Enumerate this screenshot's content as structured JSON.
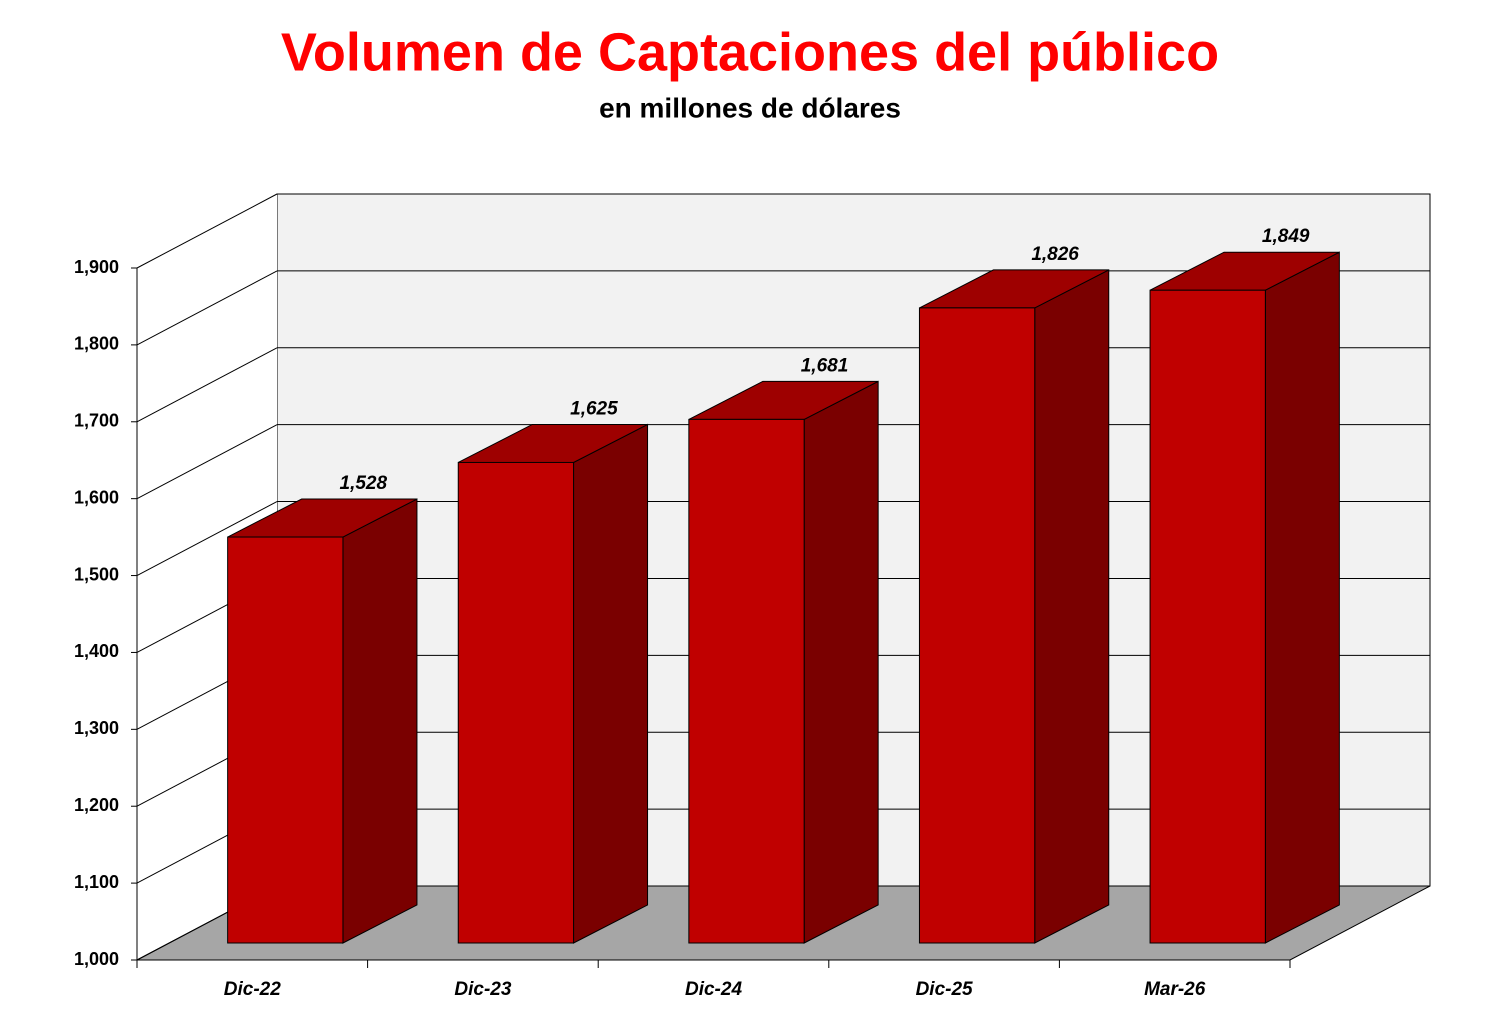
{
  "chart_data": {
    "type": "bar3d",
    "title": "Volumen de Captaciones del público",
    "subtitle": "en millones de dólares",
    "categories": [
      "Dic-22",
      "Dic-23",
      "Dic-24",
      "Dic-25",
      "Mar-26"
    ],
    "values": [
      1528,
      1625,
      1681,
      1826,
      1849
    ],
    "value_labels": [
      "1,528",
      "1,625",
      "1,681",
      "1,826",
      "1,849"
    ],
    "color": "#c00000",
    "ylim": [
      1000,
      1900
    ],
    "yticks": [
      {
        "value": 1000,
        "label": "1,000"
      },
      {
        "value": 1100,
        "label": "1,100"
      },
      {
        "value": 1200,
        "label": "1,200"
      },
      {
        "value": 1300,
        "label": "1,300"
      },
      {
        "value": 1400,
        "label": "1,400"
      },
      {
        "value": 1500,
        "label": "1,500"
      },
      {
        "value": 1600,
        "label": "1,600"
      },
      {
        "value": 1700,
        "label": "1,700"
      },
      {
        "value": 1800,
        "label": "1,800"
      },
      {
        "value": 1900,
        "label": "1,900"
      }
    ],
    "grid": true
  }
}
